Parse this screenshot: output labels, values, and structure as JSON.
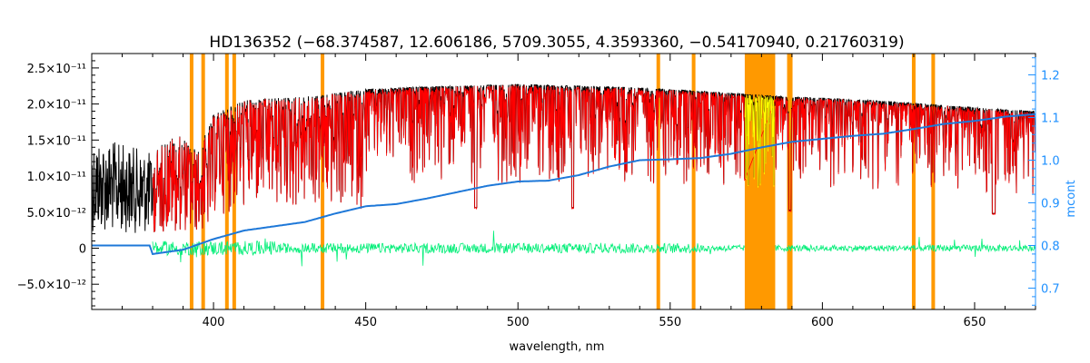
{
  "chart_data": {
    "type": "line",
    "title": "HD136352   (−68.374587, 12.606186, 5709.3055, 4.3593360, −0.54170940, 0.21760319)",
    "xlabel": "wavelength, nm",
    "ylabel": "",
    "y2label": "mcont",
    "xlim": [
      360,
      670
    ],
    "ylim": [
      -8.5e-12,
      2.7e-11
    ],
    "y2lim": [
      0.65,
      1.25
    ],
    "x_ticks": [
      {
        "value": 400,
        "label": "400"
      },
      {
        "value": 450,
        "label": "450"
      },
      {
        "value": 500,
        "label": "500"
      },
      {
        "value": 550,
        "label": "550"
      },
      {
        "value": 600,
        "label": "600"
      },
      {
        "value": 650,
        "label": "650"
      }
    ],
    "y_ticks": [
      {
        "value": 2.5e-11,
        "label": "2.5×10⁻¹¹"
      },
      {
        "value": 2e-11,
        "label": "2.0×10⁻¹¹"
      },
      {
        "value": 1.5e-11,
        "label": "1.5×10⁻¹¹"
      },
      {
        "value": 1e-11,
        "label": "1.0×10⁻¹¹"
      },
      {
        "value": 5e-12,
        "label": "5.0×10⁻¹²"
      },
      {
        "value": 0,
        "label": "0"
      },
      {
        "value": -5e-12,
        "label": "−5.0×10⁻¹²"
      }
    ],
    "y2_ticks": [
      {
        "value": 1.2,
        "label": "1.2"
      },
      {
        "value": 1.1,
        "label": "1.1"
      },
      {
        "value": 1.0,
        "label": "1.0"
      },
      {
        "value": 0.9,
        "label": "0.9"
      },
      {
        "value": 0.8,
        "label": "0.8"
      },
      {
        "value": 0.7,
        "label": "0.7"
      }
    ],
    "masked_lines_nm": [
      392.8,
      396.6,
      404.4,
      406.8,
      435.8,
      546.1,
      557.7,
      589.0,
      589.6,
      630.0,
      636.4
    ],
    "masked_bands_nm": [
      [
        574.5,
        584.5
      ]
    ],
    "series": [
      {
        "key": "observed",
        "color": "#000000",
        "points": [
          [
            360,
            1.55e-11
          ],
          [
            370,
            1.45e-11
          ],
          [
            378,
            1.35e-11
          ],
          [
            380,
            1.3e-11
          ],
          [
            385,
            1.55e-11
          ],
          [
            390,
            1.55e-11
          ],
          [
            395,
            1.35e-11
          ],
          [
            400,
            1.85e-11
          ],
          [
            410,
            2.05e-11
          ],
          [
            420,
            2.08e-11
          ],
          [
            430,
            2.1e-11
          ],
          [
            440,
            2.15e-11
          ],
          [
            450,
            2.2e-11
          ],
          [
            460,
            2.22e-11
          ],
          [
            470,
            2.24e-11
          ],
          [
            480,
            2.25e-11
          ],
          [
            490,
            2.26e-11
          ],
          [
            500,
            2.27e-11
          ],
          [
            510,
            2.26e-11
          ],
          [
            520,
            2.25e-11
          ],
          [
            530,
            2.24e-11
          ],
          [
            540,
            2.22e-11
          ],
          [
            550,
            2.2e-11
          ],
          [
            560,
            2.18e-11
          ],
          [
            570,
            2.15e-11
          ],
          [
            580,
            2.12e-11
          ],
          [
            590,
            2.1e-11
          ],
          [
            600,
            2.08e-11
          ],
          [
            610,
            2.06e-11
          ],
          [
            620,
            2.04e-11
          ],
          [
            630,
            2.01e-11
          ],
          [
            640,
            1.98e-11
          ],
          [
            650,
            1.95e-11
          ],
          [
            660,
            1.92e-11
          ],
          [
            670,
            1.9e-11
          ]
        ]
      },
      {
        "key": "model",
        "color": "#ff0000",
        "x_range": [
          380,
          670
        ]
      },
      {
        "key": "residuals",
        "color": "#00ee77",
        "x_range": [
          380,
          670
        ],
        "center": 0
      },
      {
        "key": "mcont",
        "color": "#1e78d8",
        "axis": "right",
        "points": [
          [
            360,
            0.8
          ],
          [
            370,
            0.8
          ],
          [
            379,
            0.8
          ],
          [
            380,
            0.78
          ],
          [
            390,
            0.79
          ],
          [
            400,
            0.815
          ],
          [
            410,
            0.835
          ],
          [
            420,
            0.845
          ],
          [
            430,
            0.855
          ],
          [
            440,
            0.875
          ],
          [
            450,
            0.892
          ],
          [
            460,
            0.897
          ],
          [
            470,
            0.91
          ],
          [
            480,
            0.925
          ],
          [
            490,
            0.94
          ],
          [
            500,
            0.95
          ],
          [
            510,
            0.952
          ],
          [
            520,
            0.965
          ],
          [
            530,
            0.985
          ],
          [
            540,
            1.0
          ],
          [
            550,
            1.002
          ],
          [
            560,
            1.005
          ],
          [
            570,
            1.015
          ],
          [
            580,
            1.03
          ],
          [
            590,
            1.043
          ],
          [
            600,
            1.05
          ],
          [
            610,
            1.057
          ],
          [
            620,
            1.062
          ],
          [
            630,
            1.073
          ],
          [
            640,
            1.085
          ],
          [
            650,
            1.092
          ],
          [
            660,
            1.102
          ],
          [
            670,
            1.108
          ]
        ]
      }
    ]
  }
}
